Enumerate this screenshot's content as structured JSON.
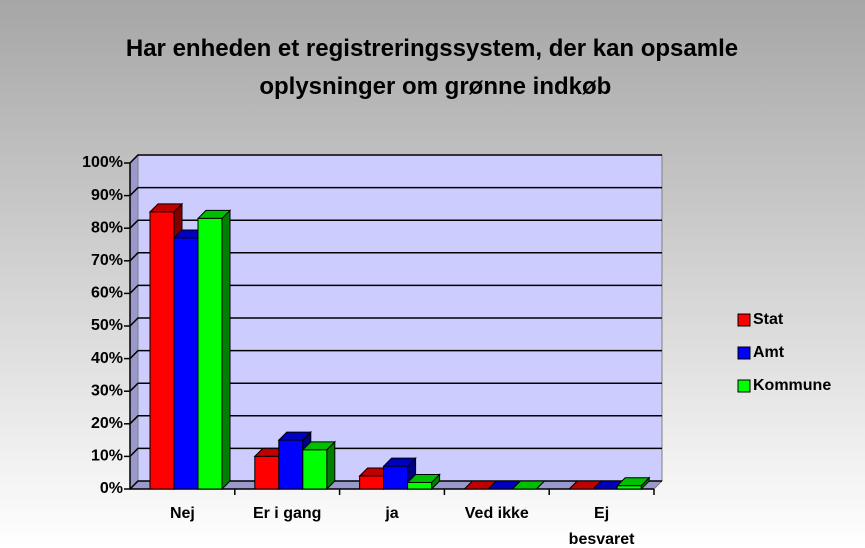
{
  "chart_data": {
    "type": "bar3d",
    "title": "Har enheden et registreringssystem, der kan opsamle oplysninger om grønne indkøb",
    "categories": [
      "Nej",
      "Er i gang",
      "ja",
      "Ved ikke",
      "Ej besvaret"
    ],
    "series": [
      {
        "name": "Stat",
        "color": "#ff0000",
        "values": [
          85,
          10,
          4,
          0,
          0
        ]
      },
      {
        "name": "Amt",
        "color": "#0000ff",
        "values": [
          77,
          15,
          7,
          0,
          0
        ]
      },
      {
        "name": "Kommune",
        "color": "#00ff00",
        "values": [
          83,
          12,
          2,
          0,
          1
        ]
      }
    ],
    "ylim": [
      0,
      100
    ],
    "yticks": [
      {
        "value": 0,
        "label": "0%"
      },
      {
        "value": 10,
        "label": "10%"
      },
      {
        "value": 20,
        "label": "20%"
      },
      {
        "value": 30,
        "label": "30%"
      },
      {
        "value": 40,
        "label": "40%"
      },
      {
        "value": 50,
        "label": "50%"
      },
      {
        "value": 60,
        "label": "60%"
      },
      {
        "value": 70,
        "label": "70%"
      },
      {
        "value": 80,
        "label": "80%"
      },
      {
        "value": 90,
        "label": "90%"
      },
      {
        "value": 100,
        "label": "100%"
      }
    ],
    "grid": true,
    "legend": "right"
  }
}
